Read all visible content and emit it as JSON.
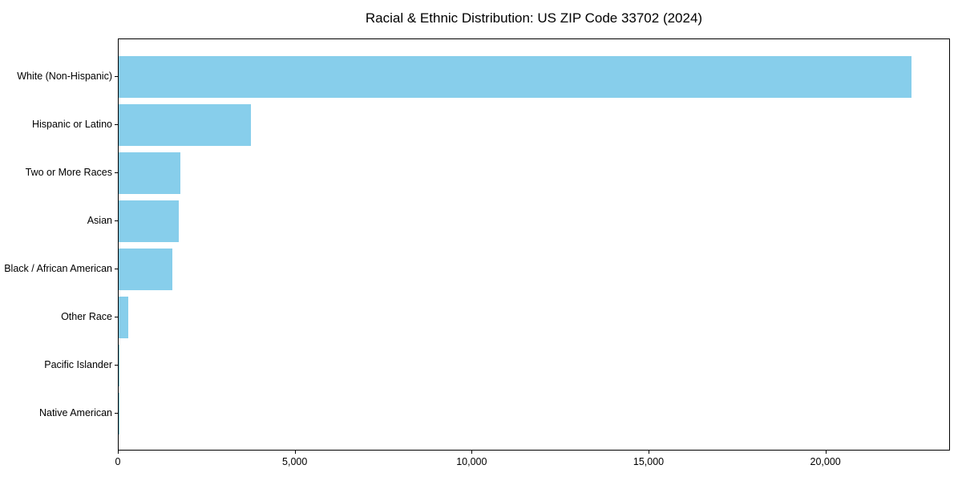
{
  "title": "Racial & Ethnic Distribution: US ZIP Code 33702 (2024)",
  "chart_data": {
    "type": "bar",
    "orientation": "horizontal",
    "title": "Racial & Ethnic Distribution: US ZIP Code 33702 (2024)",
    "categories": [
      "White (Non-Hispanic)",
      "Hispanic or Latino",
      "Two or More Races",
      "Asian",
      "Black / African American",
      "Other Race",
      "Pacific Islander",
      "Native American"
    ],
    "values": [
      22400,
      3730,
      1745,
      1700,
      1520,
      270,
      25,
      10
    ],
    "xlabel": "",
    "ylabel": "",
    "xlim": [
      0,
      23520
    ],
    "xticks": [
      0,
      5000,
      10000,
      15000,
      20000
    ],
    "xtick_labels": [
      "0",
      "5,000",
      "10,000",
      "15,000",
      "20,000"
    ],
    "grid": false,
    "legend": null,
    "bar_color": "#87CEEB",
    "spine_color": "#000000",
    "text_color": "#000000"
  }
}
